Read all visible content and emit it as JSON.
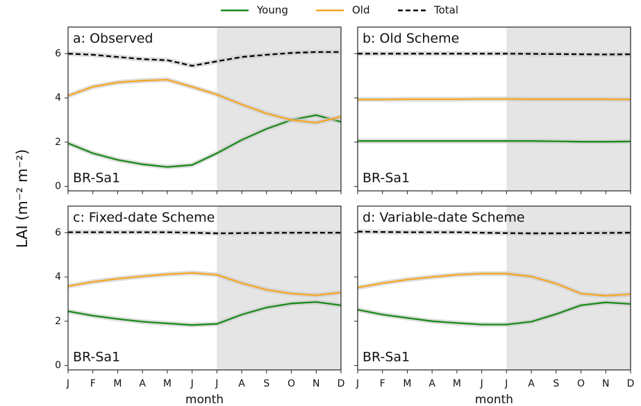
{
  "chart_data": [
    {
      "type": "line",
      "title": "a: Observed",
      "annotation": "BR-Sa1",
      "ylabel": "LAI (m⁻² m⁻²)",
      "categories": [
        null,
        null,
        null,
        null,
        null,
        null,
        null,
        null,
        null,
        null,
        null,
        null
      ],
      "shade": [
        6,
        11
      ],
      "ylim": [
        -0.2,
        7.2
      ],
      "yticks": [
        0,
        2,
        4,
        6
      ],
      "show_ytick_labels": true,
      "series": [
        {
          "name": "Young",
          "color": "#1a8a1a",
          "values": [
            1.95,
            1.5,
            1.2,
            1.0,
            0.88,
            0.97,
            1.5,
            2.1,
            2.6,
            3.0,
            3.22,
            2.92
          ]
        },
        {
          "name": "Old",
          "color": "#f5a623",
          "values": [
            4.1,
            4.5,
            4.7,
            4.78,
            4.82,
            4.5,
            4.15,
            3.7,
            3.3,
            3.0,
            2.88,
            3.15
          ]
        },
        {
          "name": "Total",
          "color": "#000000",
          "linestyle": "--",
          "values": [
            6.0,
            5.95,
            5.85,
            5.75,
            5.7,
            5.45,
            5.65,
            5.85,
            5.95,
            6.03,
            6.07,
            6.07
          ]
        }
      ]
    },
    {
      "type": "line",
      "title": "b: Old Scheme",
      "annotation": "BR-Sa1",
      "categories": [
        null,
        null,
        null,
        null,
        null,
        null,
        null,
        null,
        null,
        null,
        null,
        null
      ],
      "shade": [
        6,
        11
      ],
      "ylim": [
        -0.2,
        7.2
      ],
      "yticks": [
        0,
        2,
        4,
        6
      ],
      "show_ytick_labels": false,
      "series": [
        {
          "name": "Young",
          "color": "#1a8a1a",
          "values": [
            2.05,
            2.05,
            2.05,
            2.05,
            2.05,
            2.05,
            2.05,
            2.05,
            2.04,
            2.02,
            2.02,
            2.03
          ]
        },
        {
          "name": "Old",
          "color": "#f5a623",
          "values": [
            3.93,
            3.93,
            3.94,
            3.94,
            3.94,
            3.95,
            3.95,
            3.94,
            3.94,
            3.94,
            3.94,
            3.93
          ]
        },
        {
          "name": "Total",
          "color": "#000000",
          "linestyle": "--",
          "values": [
            6.0,
            6.0,
            6.0,
            6.0,
            6.0,
            6.0,
            6.0,
            5.99,
            5.98,
            5.97,
            5.96,
            5.97
          ]
        }
      ]
    },
    {
      "type": "line",
      "title": "c: Fixed-date Scheme",
      "annotation": "BR-Sa1",
      "xlabel": "month",
      "categories": [
        "J",
        "F",
        "M",
        "A",
        "M",
        "J",
        "J",
        "A",
        "S",
        "O",
        "N",
        "D"
      ],
      "shade": [
        6,
        11
      ],
      "ylim": [
        -0.2,
        7.2
      ],
      "yticks": [
        0,
        2,
        4,
        6
      ],
      "show_ytick_labels": true,
      "series": [
        {
          "name": "Young",
          "color": "#1a8a1a",
          "values": [
            2.45,
            2.25,
            2.1,
            1.98,
            1.9,
            1.83,
            1.88,
            2.3,
            2.62,
            2.8,
            2.87,
            2.72
          ]
        },
        {
          "name": "Old",
          "color": "#f5a623",
          "values": [
            3.58,
            3.78,
            3.92,
            4.03,
            4.12,
            4.18,
            4.1,
            3.72,
            3.42,
            3.25,
            3.17,
            3.3
          ]
        },
        {
          "name": "Total",
          "color": "#000000",
          "linestyle": "--",
          "values": [
            6.02,
            6.02,
            6.02,
            6.02,
            6.02,
            6.0,
            5.97,
            5.98,
            5.99,
            6.0,
            6.0,
            6.0
          ]
        }
      ]
    },
    {
      "type": "line",
      "title": "d: Variable-date Scheme",
      "annotation": "BR-Sa1",
      "xlabel": "month",
      "categories": [
        "J",
        "F",
        "M",
        "A",
        "M",
        "J",
        "J",
        "A",
        "S",
        "O",
        "N",
        "D"
      ],
      "shade": [
        6,
        11
      ],
      "ylim": [
        -0.2,
        7.2
      ],
      "yticks": [
        0,
        2,
        4,
        6
      ],
      "show_ytick_labels": false,
      "series": [
        {
          "name": "Young",
          "color": "#1a8a1a",
          "values": [
            2.52,
            2.3,
            2.15,
            2.0,
            1.92,
            1.85,
            1.85,
            1.98,
            2.32,
            2.72,
            2.85,
            2.78
          ]
        },
        {
          "name": "Old",
          "color": "#f5a623",
          "values": [
            3.52,
            3.72,
            3.88,
            4.0,
            4.1,
            4.15,
            4.15,
            4.02,
            3.7,
            3.25,
            3.15,
            3.22
          ]
        },
        {
          "name": "Total",
          "color": "#000000",
          "linestyle": "--",
          "values": [
            6.05,
            6.03,
            6.02,
            6.02,
            6.02,
            6.0,
            5.98,
            5.97,
            5.97,
            5.98,
            5.99,
            6.0
          ]
        }
      ]
    }
  ]
}
